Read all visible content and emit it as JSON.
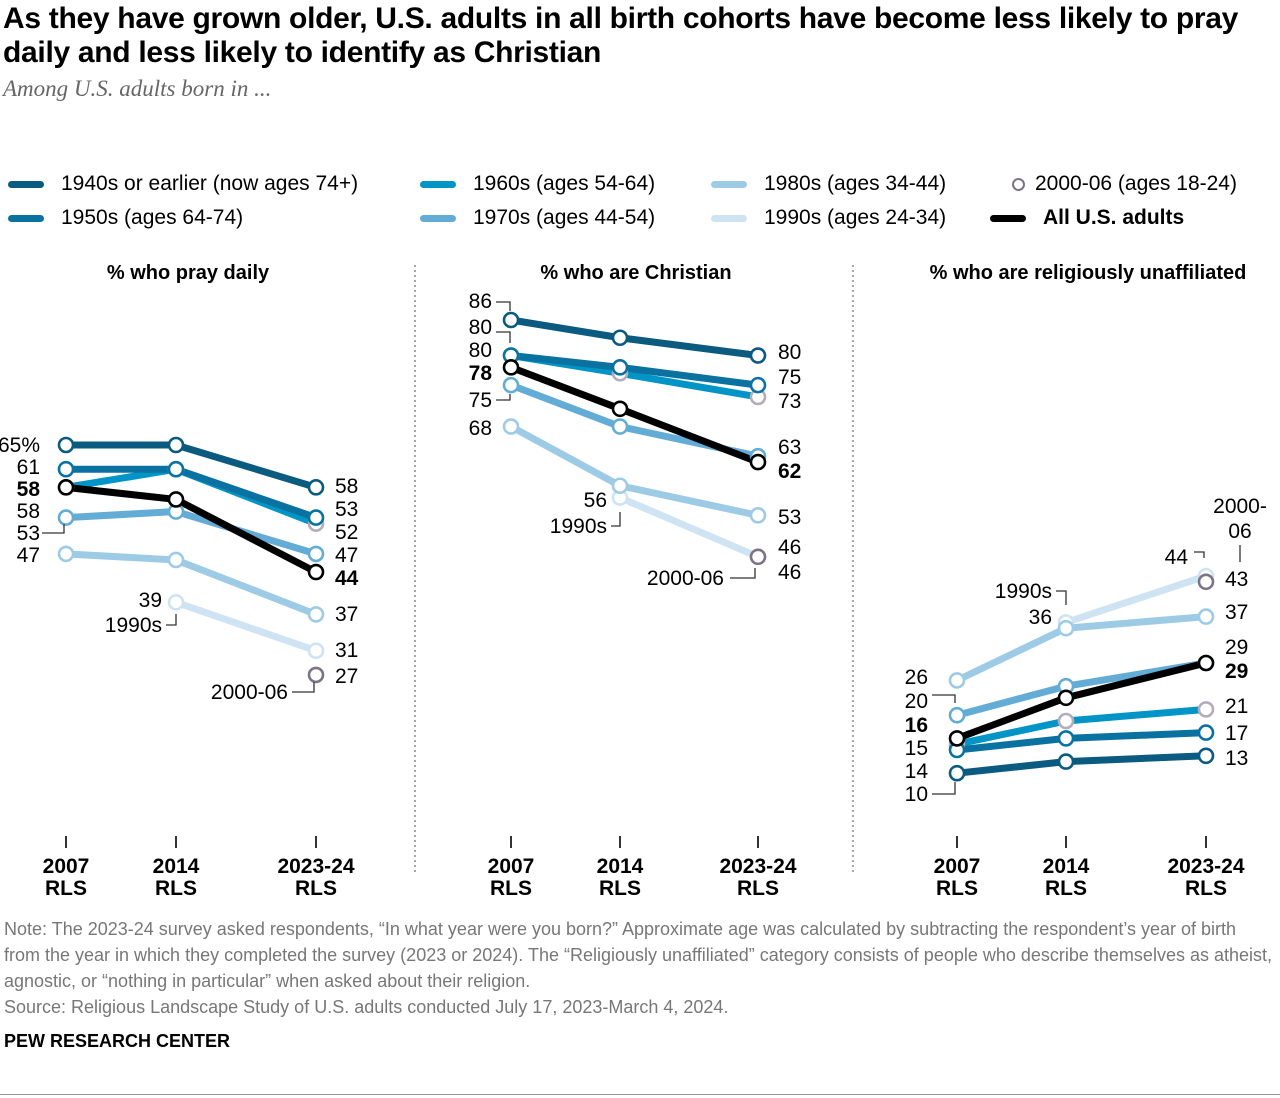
{
  "title": "As they have grown older, U.S. adults in all birth cohorts have become less likely to pray daily and less likely to identify as Christian",
  "subtitle": "Among U.S. adults born in ...",
  "legend": [
    {
      "key": "1940s",
      "label": "1940s or earlier (now ages 74+)",
      "color": "#0b5a80"
    },
    {
      "key": "1950s",
      "label": "1950s (ages 64-74)",
      "color": "#0a72a0"
    },
    {
      "key": "1960s",
      "label": "1960s (ages 54-64)",
      "color": "#0095c6"
    },
    {
      "key": "1970s",
      "label": "1970s (ages 44-54)",
      "color": "#63acd6"
    },
    {
      "key": "1980s",
      "label": "1980s (ages 34-44)",
      "color": "#9dcbe6"
    },
    {
      "key": "1990s",
      "label": "1990s (ages 24-34)",
      "color": "#cfe4f2"
    },
    {
      "key": "2000-06",
      "label": "2000-06 (ages 18-24)",
      "color": "#7d7387"
    },
    {
      "key": "all",
      "label": "All U.S. adults",
      "color": "#000000"
    }
  ],
  "chart_data": [
    {
      "type": "line",
      "title": "% who pray daily",
      "unit": "%",
      "categories": [
        "2007 RLS",
        "2014 RLS",
        "2023-24 RLS"
      ],
      "series": [
        {
          "name": "1940s or earlier (now ages 74+)",
          "values": [
            65,
            65,
            58
          ]
        },
        {
          "name": "1950s (ages 64-74)",
          "values": [
            61,
            61,
            53
          ]
        },
        {
          "name": "1960s (ages 54-64)",
          "values": [
            58,
            61,
            52
          ]
        },
        {
          "name": "1970s (ages 44-54)",
          "values": [
            53,
            54,
            47
          ]
        },
        {
          "name": "1980s (ages 34-44)",
          "values": [
            47,
            46,
            37
          ]
        },
        {
          "name": "1990s (ages 24-34)",
          "values": [
            null,
            39,
            31
          ]
        },
        {
          "name": "2000-06 (ages 18-24)",
          "values": [
            null,
            null,
            27
          ]
        },
        {
          "name": "All U.S. adults",
          "values": [
            58,
            56,
            44
          ]
        }
      ],
      "labels": [
        "65%",
        "61",
        "58",
        "58",
        "53",
        "47",
        "58",
        "53",
        "52",
        "47",
        "44",
        "37",
        "31",
        "27",
        "39",
        "1990s",
        "2000-06"
      ]
    },
    {
      "type": "line",
      "title": "% who are Christian",
      "categories": [
        "2007 RLS",
        "2014 RLS",
        "2023-24 RLS"
      ],
      "series": [
        {
          "name": "1940s or earlier (now ages 74+)",
          "values": [
            86,
            83,
            80
          ]
        },
        {
          "name": "1950s (ages 64-74)",
          "values": [
            80,
            78,
            75
          ]
        },
        {
          "name": "1960s (ages 54-64)",
          "values": [
            80,
            77,
            73
          ]
        },
        {
          "name": "1970s (ages 44-54)",
          "values": [
            75,
            68,
            63
          ]
        },
        {
          "name": "1980s (ages 34-44)",
          "values": [
            68,
            58,
            53
          ]
        },
        {
          "name": "1990s (ages 24-34)",
          "values": [
            null,
            56,
            46
          ]
        },
        {
          "name": "2000-06 (ages 18-24)",
          "values": [
            null,
            null,
            46
          ]
        },
        {
          "name": "All U.S. adults",
          "values": [
            78,
            71,
            62
          ]
        }
      ],
      "labels": [
        "86",
        "80",
        "80",
        "78",
        "75",
        "68",
        "80",
        "75",
        "73",
        "63",
        "62",
        "53",
        "46",
        "46",
        "56",
        "1990s",
        "2000-06"
      ]
    },
    {
      "type": "line",
      "title": "% who are religiously unaffiliated",
      "categories": [
        "2007 RLS",
        "2014 RLS",
        "2023-24 RLS"
      ],
      "series": [
        {
          "name": "1940s or earlier (now ages 74+)",
          "values": [
            10,
            12,
            13
          ]
        },
        {
          "name": "1950s (ages 64-74)",
          "values": [
            14,
            16,
            17
          ]
        },
        {
          "name": "1960s (ages 54-64)",
          "values": [
            15,
            19,
            21
          ]
        },
        {
          "name": "1970s (ages 44-54)",
          "values": [
            20,
            25,
            29
          ]
        },
        {
          "name": "1980s (ages 34-44)",
          "values": [
            26,
            35,
            37
          ]
        },
        {
          "name": "1990s (ages 24-34)",
          "values": [
            null,
            36,
            44
          ]
        },
        {
          "name": "2000-06 (ages 18-24)",
          "values": [
            null,
            null,
            43
          ]
        },
        {
          "name": "All U.S. adults",
          "values": [
            16,
            23,
            29
          ]
        }
      ],
      "labels": [
        "26",
        "20",
        "16",
        "15",
        "14",
        "10",
        "43",
        "37",
        "29",
        "29",
        "21",
        "17",
        "13",
        "1990s",
        "36",
        "44",
        "2000-",
        "06"
      ]
    }
  ],
  "axis_ticks": [
    [
      "2007",
      "RLS"
    ],
    [
      "2014",
      "RLS"
    ],
    [
      "2023-24",
      "RLS"
    ]
  ],
  "note": "Note: The 2023-24 survey asked respondents, “In what year were you born?” Approximate age was calculated by subtracting the respondent’s year of birth from the year in which they completed the survey (2023 or 2024). The “Religiously unaffiliated” category consists of people who describe themselves as atheist, agnostic, or “nothing in particular” when asked about their religion.",
  "source": "Source: Religious Landscape Study of U.S. adults conducted July 17, 2023-March 4, 2024.",
  "brand": "PEW RESEARCH CENTER"
}
